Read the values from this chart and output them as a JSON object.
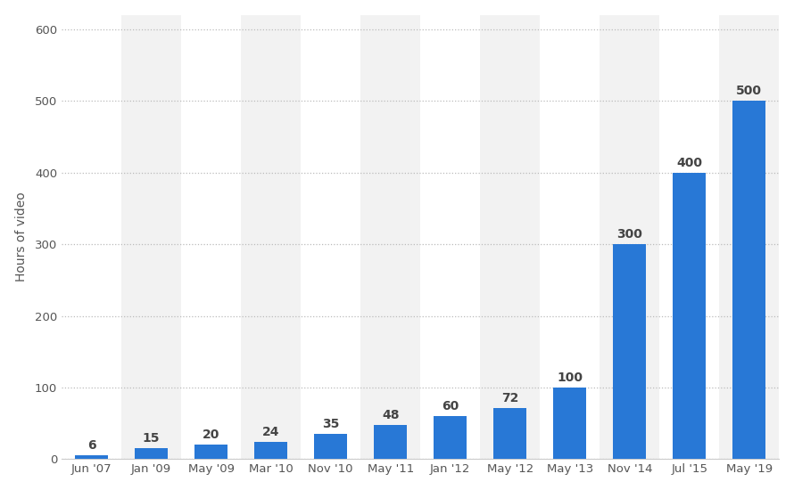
{
  "categories": [
    "Jun '07",
    "Jan '09",
    "May '09",
    "Mar '10",
    "Nov '10",
    "May '11",
    "Jan '12",
    "May '12",
    "May '13",
    "Nov '14",
    "Jul '15",
    "May '19"
  ],
  "values": [
    6,
    15,
    20,
    24,
    35,
    48,
    60,
    72,
    100,
    300,
    400,
    500
  ],
  "bar_color": "#2878d6",
  "ylabel": "Hours of video",
  "ylim": [
    0,
    620
  ],
  "yticks": [
    0,
    100,
    200,
    300,
    400,
    500,
    600
  ],
  "background_color": "#ffffff",
  "plot_bg_color": "#ffffff",
  "col_even_color": "#f2f2f2",
  "col_odd_color": "#ffffff",
  "grid_color": "#bbbbbb",
  "label_fontsize": 10,
  "tick_fontsize": 9.5,
  "bar_label_fontsize": 10,
  "bar_label_color": "#444444"
}
